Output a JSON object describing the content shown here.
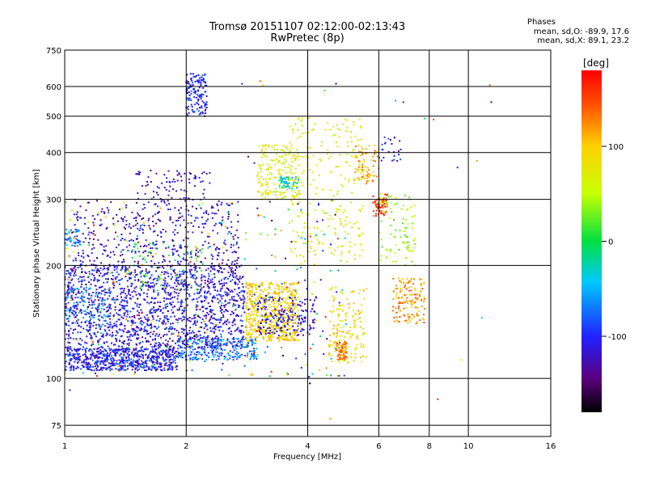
{
  "header": {
    "title_line1": "Tromsø 20151107 02:12:00-02:13:43",
    "title_line2": "RwPretec (8p)"
  },
  "phase_box": {
    "title": "Phases",
    "line_o": "mean, sd,O: -89.9, 17.6",
    "line_x": "mean, sd,X:  89.1, 23.2"
  },
  "colorbar": {
    "unit_label": "[deg]",
    "ticks": [
      "100",
      "0",
      "-100"
    ],
    "tick_values": [
      100,
      0,
      -100
    ],
    "range": [
      -180,
      180
    ]
  },
  "chart_data": {
    "type": "scatter",
    "xlabel": "Frequency [MHz]",
    "ylabel": "Stationary phase Virtual Height [km]",
    "x_scale": "log",
    "y_scale": "log",
    "xlim": [
      1,
      16
    ],
    "ylim": [
      70,
      750
    ],
    "x_ticks": [
      1,
      2,
      4,
      6,
      8,
      10,
      16
    ],
    "y_ticks": [
      75,
      100,
      200,
      300,
      400,
      500,
      600,
      750
    ],
    "grid": true,
    "color_by": "phase [deg]",
    "clusters": [
      {
        "f": [
          1.0,
          1.9
        ],
        "h": [
          105,
          120
        ],
        "phase": -105,
        "n": 650
      },
      {
        "f": [
          1.9,
          3.0
        ],
        "h": [
          112,
          128
        ],
        "phase": -75,
        "n": 260
      },
      {
        "f": [
          1.0,
          2.8
        ],
        "h": [
          120,
          200
        ],
        "phase": -110,
        "n": 1500
      },
      {
        "f": [
          1.0,
          1.3
        ],
        "h": [
          140,
          175
        ],
        "phase": -60,
        "n": 90
      },
      {
        "f": [
          1.0,
          1.1
        ],
        "h": [
          225,
          250
        ],
        "phase": -70,
        "n": 45
      },
      {
        "f": [
          1.05,
          2.7
        ],
        "h": [
          200,
          300
        ],
        "phase": -120,
        "n": 420
      },
      {
        "f": [
          1.4,
          2.2
        ],
        "h": [
          170,
          230
        ],
        "phase": 10,
        "n": 70
      },
      {
        "f": [
          1.5,
          2.3
        ],
        "h": [
          300,
          360
        ],
        "phase": -120,
        "n": 80
      },
      {
        "f": [
          2.0,
          2.25
        ],
        "h": [
          500,
          650
        ],
        "phase": -100,
        "n": 150
      },
      {
        "f": [
          2.8,
          3.8
        ],
        "h": [
          125,
          180
        ],
        "phase": 95,
        "n": 550
      },
      {
        "f": [
          3.0,
          4.2
        ],
        "h": [
          130,
          165
        ],
        "phase": -115,
        "n": 180
      },
      {
        "f": [
          3.0,
          3.8
        ],
        "h": [
          300,
          420
        ],
        "phase": 70,
        "n": 180
      },
      {
        "f": [
          3.4,
          3.8
        ],
        "h": [
          320,
          345
        ],
        "phase": -30,
        "n": 50
      },
      {
        "f": [
          3.6,
          5.5
        ],
        "h": [
          200,
          500
        ],
        "phase": 70,
        "n": 250
      },
      {
        "f": [
          4.5,
          5.6
        ],
        "h": [
          110,
          175
        ],
        "phase": 90,
        "n": 150
      },
      {
        "f": [
          4.7,
          5.0
        ],
        "h": [
          112,
          125
        ],
        "phase": 135,
        "n": 55
      },
      {
        "f": [
          5.2,
          6.0
        ],
        "h": [
          330,
          420
        ],
        "phase": 110,
        "n": 80
      },
      {
        "f": [
          5.8,
          6.3
        ],
        "h": [
          270,
          310
        ],
        "phase": 150,
        "n": 70
      },
      {
        "f": [
          6.0,
          7.4
        ],
        "h": [
          200,
          310
        ],
        "phase": 40,
        "n": 90
      },
      {
        "f": [
          6.5,
          7.8
        ],
        "h": [
          140,
          185
        ],
        "phase": 120,
        "n": 140
      },
      {
        "f": [
          6.0,
          6.8
        ],
        "h": [
          380,
          440
        ],
        "phase": -110,
        "n": 25
      },
      {
        "f": [
          1.0,
          5.0
        ],
        "h": [
          100,
          300
        ],
        "phase": 0,
        "n": 320
      }
    ],
    "points": [
      {
        "f": 3.05,
        "h": 620,
        "phase": 140
      },
      {
        "f": 3.1,
        "h": 605,
        "phase": 100
      },
      {
        "f": 2.75,
        "h": 610,
        "phase": -100
      },
      {
        "f": 2.85,
        "h": 390,
        "phase": -150
      },
      {
        "f": 2.95,
        "h": 375,
        "phase": -130
      },
      {
        "f": 4.7,
        "h": 610,
        "phase": -150
      },
      {
        "f": 4.4,
        "h": 585,
        "phase": 20
      },
      {
        "f": 6.6,
        "h": 550,
        "phase": -10
      },
      {
        "f": 6.9,
        "h": 545,
        "phase": -110
      },
      {
        "f": 7.8,
        "h": 493,
        "phase": -10
      },
      {
        "f": 8.2,
        "h": 490,
        "phase": 150
      },
      {
        "f": 9.4,
        "h": 365,
        "phase": -100
      },
      {
        "f": 10.5,
        "h": 380,
        "phase": 120
      },
      {
        "f": 11.4,
        "h": 545,
        "phase": -150
      },
      {
        "f": 11.3,
        "h": 605,
        "phase": 130
      },
      {
        "f": 9.6,
        "h": 112,
        "phase": 50
      },
      {
        "f": 8.4,
        "h": 88,
        "phase": 160
      },
      {
        "f": 10.8,
        "h": 145,
        "phase": -30
      },
      {
        "f": 4.05,
        "h": 97,
        "phase": -180
      },
      {
        "f": 4.55,
        "h": 78,
        "phase": 120
      },
      {
        "f": 1.03,
        "h": 93,
        "phase": -110
      }
    ]
  }
}
